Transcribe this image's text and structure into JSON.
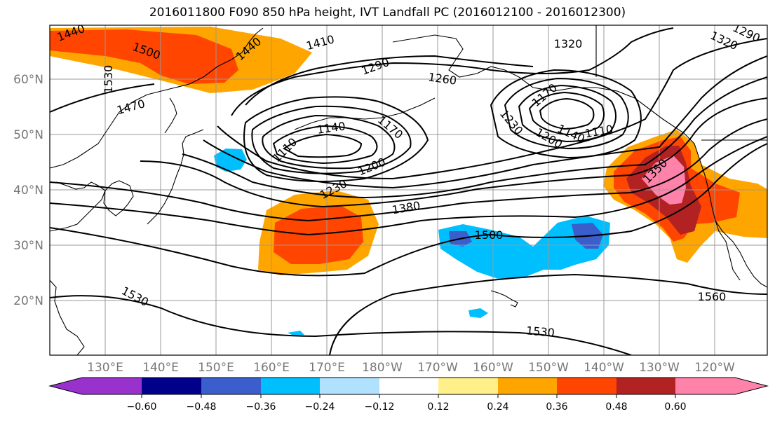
{
  "title": "2016011800 F090 850 hPa height, IVT Landfall PC (2016012100 - 2016012300)",
  "lat_labels": [
    "60°N",
    "50°N",
    "40°N",
    "30°N",
    "20°N"
  ],
  "lon_labels": [
    "130°E",
    "140°E",
    "150°E",
    "160°E",
    "170°E",
    "180°W",
    "170°W",
    "160°W",
    "150°W",
    "140°W",
    "130°W",
    "120°W"
  ],
  "contour_labels": [
    "1440",
    "1500",
    "1530",
    "1470",
    "1440",
    "1410",
    "1320",
    "1290",
    "1260",
    "1170",
    "1140",
    "1170",
    "1110",
    "1230",
    "1200",
    "1140",
    "1110",
    "1200",
    "1230",
    "1380",
    "1350",
    "1500",
    "1560",
    "1530",
    "1530",
    "1320",
    "1290"
  ],
  "colorbar": {
    "tick_labels": [
      "−0.60",
      "−0.48",
      "−0.36",
      "−0.24",
      "−0.12",
      "0.12",
      "0.24",
      "0.36",
      "0.48",
      "0.60"
    ],
    "colors": [
      "#9932cc",
      "#00008b",
      "#3a5fcd",
      "#00bfff",
      "#b0e2ff",
      "#ffffff",
      "#fff08a",
      "#ffa500",
      "#ff4500",
      "#b22222",
      "#ff82ab"
    ]
  }
}
